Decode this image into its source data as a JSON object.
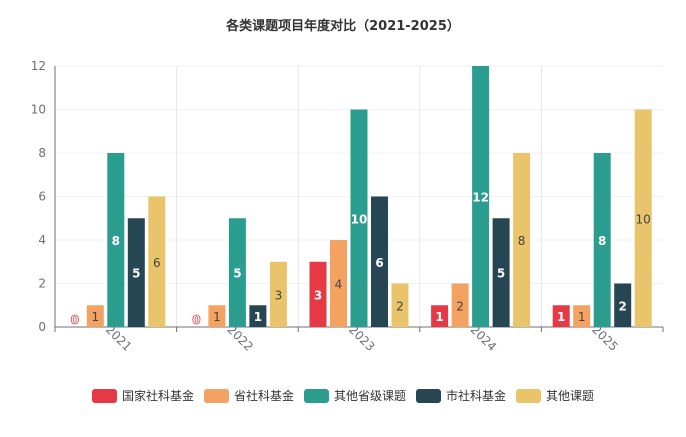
{
  "chart_data": {
    "type": "bar",
    "title": "各类课题项目年度对比（2021-2025）",
    "categories": [
      "2021",
      "2022",
      "2023",
      "2024",
      "2025"
    ],
    "ylim": [
      0,
      12
    ],
    "yticks": [
      0,
      2,
      4,
      6,
      8,
      10,
      12
    ],
    "legend_position": "bottom",
    "series": [
      {
        "name": "国家社科基金",
        "color": "#e63946",
        "label_color": "#ffffff",
        "values": [
          0,
          0,
          3,
          1,
          1
        ]
      },
      {
        "name": "省社科基金",
        "color": "#f4a261",
        "label_color": "#444444",
        "values": [
          1,
          1,
          4,
          2,
          1
        ]
      },
      {
        "name": "其他省级课题",
        "color": "#2a9d8f",
        "label_color": "#ffffff",
        "values": [
          8,
          5,
          10,
          12,
          8
        ]
      },
      {
        "name": "市社科基金",
        "color": "#264653",
        "label_color": "#ffffff",
        "values": [
          5,
          1,
          6,
          5,
          2
        ]
      },
      {
        "name": "其他课题",
        "color": "#e9c46a",
        "label_color": "#444444",
        "values": [
          6,
          3,
          2,
          8,
          10
        ]
      }
    ]
  }
}
